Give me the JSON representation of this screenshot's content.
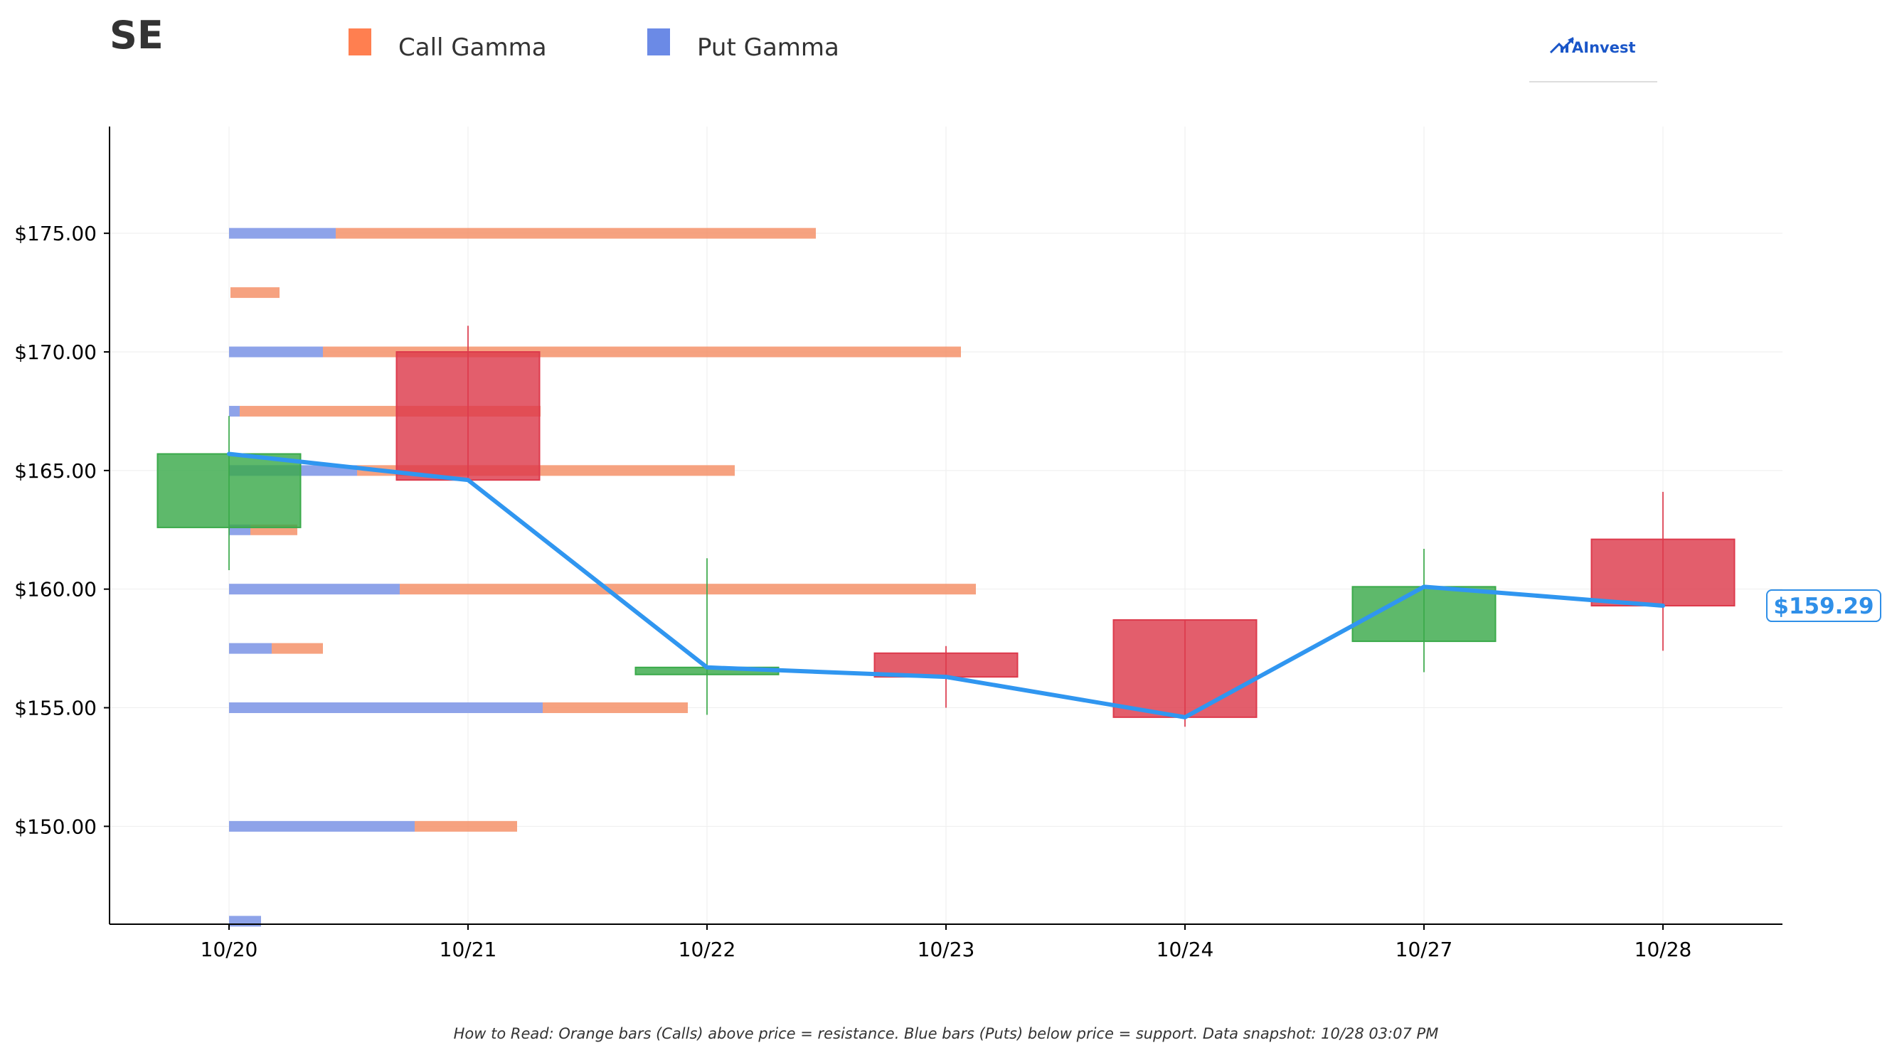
{
  "ticker": "SE",
  "logo": {
    "text": "AInvest",
    "icon": "chart-arrow-icon"
  },
  "legend": [
    {
      "label": "Call Gamma",
      "color": "#ff7f50"
    },
    {
      "label": "Put Gamma",
      "color": "#6b8ae6"
    }
  ],
  "current_price_label": "$159.29",
  "footnote": "How to Read: Orange bars (Calls) above price = resistance. Blue bars (Puts) below price = support. Data snapshot: 10/28 03:07 PM",
  "colors": {
    "call": "#f4926a",
    "put": "#889ee8",
    "up_candle": "#3aaa4a",
    "down_candle": "#dd3a4c",
    "price_line": "#3096f0",
    "axis": "#000000",
    "grid": "#eeeeee"
  },
  "chart_data": {
    "type": "candlestick",
    "title": "SE",
    "x_categories": [
      "10/20",
      "10/21",
      "10/22",
      "10/23",
      "10/24",
      "10/27",
      "10/28"
    ],
    "y_ticks": [
      "$150.00",
      "$155.00",
      "$160.00",
      "$165.00",
      "$170.00",
      "$175.00"
    ],
    "y_tick_values": [
      150,
      155,
      160,
      165,
      170,
      175
    ],
    "ylim": [
      145.875,
      179.5
    ],
    "candles": [
      {
        "date": "10/20",
        "open": 162.6,
        "high": 167.3,
        "low": 160.8,
        "close": 165.7
      },
      {
        "date": "10/21",
        "open": 170.0,
        "high": 171.1,
        "low": 164.7,
        "close": 164.6
      },
      {
        "date": "10/22",
        "open": 156.4,
        "high": 161.3,
        "low": 154.7,
        "close": 156.7
      },
      {
        "date": "10/23",
        "open": 157.3,
        "high": 157.6,
        "low": 155.0,
        "close": 156.3
      },
      {
        "date": "10/24",
        "open": 158.7,
        "high": 158.7,
        "low": 154.2,
        "close": 154.6
      },
      {
        "date": "10/27",
        "open": 157.8,
        "high": 161.7,
        "low": 156.5,
        "close": 160.1
      },
      {
        "date": "10/28",
        "open": 162.1,
        "high": 164.1,
        "low": 157.4,
        "close": 159.3
      }
    ],
    "price_line": [
      165.7,
      164.6,
      156.7,
      156.3,
      154.6,
      160.1,
      159.3
    ],
    "gamma_bars": [
      {
        "strike": 175.0,
        "put": 0.5,
        "call": 2.25
      },
      {
        "strike": 172.5,
        "put": 0.0,
        "call": 0.23
      },
      {
        "strike": 170.0,
        "put": 0.44,
        "call": 2.99
      },
      {
        "strike": 167.5,
        "put": 0.05,
        "call": 1.41
      },
      {
        "strike": 165.0,
        "put": 0.6,
        "call": 1.77
      },
      {
        "strike": 162.5,
        "put": 0.1,
        "call": 0.22
      },
      {
        "strike": 160.0,
        "put": 0.8,
        "call": 2.7
      },
      {
        "strike": 157.5,
        "put": 0.2,
        "call": 0.24
      },
      {
        "strike": 155.0,
        "put": 1.47,
        "call": 0.68
      },
      {
        "strike": 150.0,
        "put": 0.87,
        "call": 0.48
      },
      {
        "strike": 146.0,
        "put": 0.15,
        "call": 0.0
      }
    ]
  }
}
